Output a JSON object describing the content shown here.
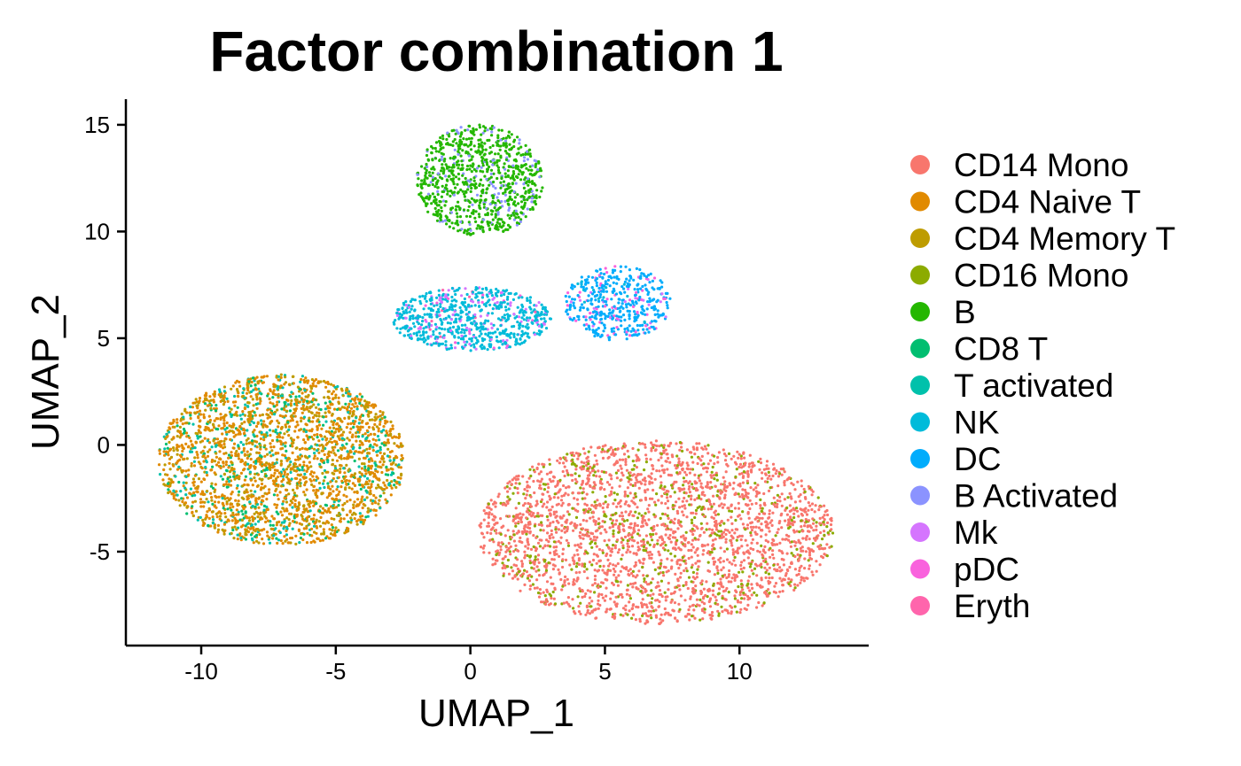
{
  "chart_data": {
    "type": "scatter",
    "title": "Factor combination 1",
    "xlabel": "UMAP_1",
    "ylabel": "UMAP_2",
    "xlim": [
      -12.8,
      14.8
    ],
    "ylim": [
      -9.4,
      16.2
    ],
    "xticks": [
      -10,
      -5,
      0,
      5,
      10
    ],
    "yticks": [
      -5,
      0,
      5,
      10,
      15
    ],
    "xtick_labels": [
      "-10",
      "-5",
      "0",
      "5",
      "10"
    ],
    "ytick_labels": [
      "-5",
      "0",
      "5",
      "10",
      "15"
    ],
    "grid": false,
    "legend_position": "right",
    "series": [
      {
        "name": "CD14 Mono",
        "color": "#F8766D"
      },
      {
        "name": "CD4 Naive T",
        "color": "#E18A00"
      },
      {
        "name": "CD4 Memory T",
        "color": "#BE9C00"
      },
      {
        "name": "CD16 Mono",
        "color": "#8CAB00"
      },
      {
        "name": "B",
        "color": "#24B700"
      },
      {
        "name": "CD8 T",
        "color": "#00BE70"
      },
      {
        "name": "T activated",
        "color": "#00C1AB"
      },
      {
        "name": "NK",
        "color": "#00BBDA"
      },
      {
        "name": "DC",
        "color": "#00ACFC"
      },
      {
        "name": "B Activated",
        "color": "#8B93FF"
      },
      {
        "name": "Mk",
        "color": "#D575FE"
      },
      {
        "name": "pDC",
        "color": "#F962DD"
      },
      {
        "name": "Eryth",
        "color": "#FF65AC"
      }
    ],
    "clusters": [
      {
        "name": "T cell cluster",
        "center": [
          -7,
          -0.8
        ],
        "extent_x": [
          -11.6,
          -2.4
        ],
        "extent_y": [
          -4.7,
          3.3
        ],
        "n": 2600,
        "mix": [
          [
            "CD4 Naive T",
            0.55
          ],
          [
            "CD4 Memory T",
            0.25
          ],
          [
            "T activated",
            0.12
          ],
          [
            "CD8 T",
            0.08
          ]
        ]
      },
      {
        "name": "Monocyte cluster",
        "center": [
          6,
          -2.6
        ],
        "extent_x": [
          0.3,
          13.5
        ],
        "extent_y": [
          -8.4,
          0.2
        ],
        "n": 2800,
        "mix": [
          [
            "CD14 Mono",
            0.82
          ],
          [
            "CD16 Mono",
            0.18
          ]
        ]
      },
      {
        "name": "B cell cluster",
        "center": [
          0.8,
          12.6
        ],
        "extent_x": [
          -2,
          2.7
        ],
        "extent_y": [
          9.8,
          15
        ],
        "n": 900,
        "mix": [
          [
            "B",
            0.86
          ],
          [
            "B Activated",
            0.14
          ]
        ]
      },
      {
        "name": "NK cluster",
        "center": [
          0.5,
          5.9
        ],
        "extent_x": [
          -2.9,
          3
        ],
        "extent_y": [
          4.4,
          7.4
        ],
        "n": 700,
        "mix": [
          [
            "NK",
            0.8
          ],
          [
            "Mk",
            0.15
          ],
          [
            "pDC",
            0.03
          ],
          [
            "Eryth",
            0.02
          ]
        ]
      },
      {
        "name": "DC cluster",
        "center": [
          5.9,
          6.3
        ],
        "extent_x": [
          3.5,
          7.5
        ],
        "extent_y": [
          4.9,
          8.4
        ],
        "n": 450,
        "mix": [
          [
            "DC",
            0.82
          ],
          [
            "pDC",
            0.1
          ],
          [
            "Mk",
            0.05
          ],
          [
            "NK",
            0.03
          ]
        ]
      }
    ]
  }
}
